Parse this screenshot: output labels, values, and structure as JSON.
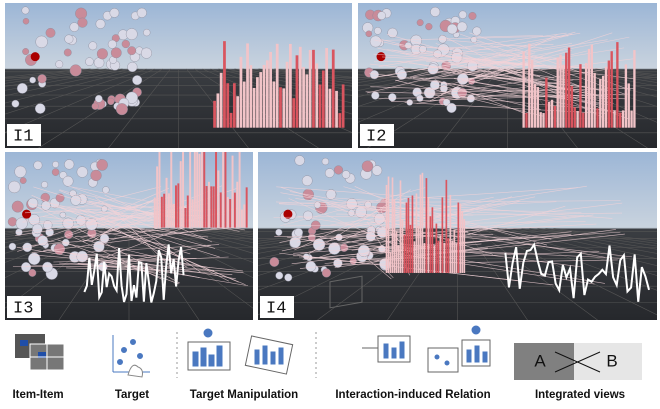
{
  "panels": [
    {
      "label": "I1"
    },
    {
      "label": "I2"
    },
    {
      "label": "I3"
    },
    {
      "label": "I4"
    }
  ],
  "legend": [
    {
      "label": "Item-Item"
    },
    {
      "label": "Target"
    },
    {
      "label": "Target Manipulation"
    },
    {
      "label": "Interaction-induced Relation"
    },
    {
      "label": "Integrated views"
    }
  ],
  "integrated_icon": {
    "left": "A",
    "right": "B"
  }
}
